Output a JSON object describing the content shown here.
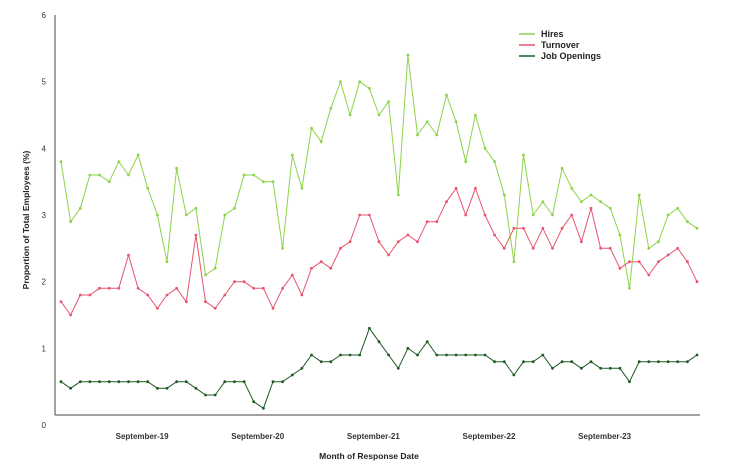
{
  "chart_data": {
    "type": "line",
    "xlabel": "Month of Response Date",
    "ylabel": "Proportion of Total Employees (%)",
    "ylim": [
      0,
      6
    ],
    "yticks": [
      0,
      1,
      2,
      3,
      4,
      5,
      6
    ],
    "x_tick_labels": [
      {
        "label": "September-19",
        "index": 8
      },
      {
        "label": "September-20",
        "index": 20
      },
      {
        "label": "September-21",
        "index": 32
      },
      {
        "label": "September-22",
        "index": 44
      },
      {
        "label": "September-23",
        "index": 56
      }
    ],
    "grid": false,
    "legend_position": "top-right",
    "series": [
      {
        "name": "Hires",
        "color": "#8ed34a",
        "values": [
          3.8,
          2.9,
          3.1,
          3.6,
          3.6,
          3.5,
          3.8,
          3.6,
          3.9,
          3.4,
          3.0,
          2.3,
          3.7,
          3.0,
          3.1,
          2.1,
          2.2,
          3.0,
          3.1,
          3.6,
          3.6,
          3.5,
          3.5,
          2.5,
          3.9,
          3.4,
          4.3,
          4.1,
          4.6,
          5.0,
          4.5,
          5.0,
          4.9,
          4.5,
          4.7,
          3.3,
          5.4,
          4.2,
          4.4,
          4.2,
          4.8,
          4.4,
          3.8,
          4.5,
          4.0,
          3.8,
          3.3,
          2.3,
          3.9,
          3.0,
          3.2,
          3.0,
          3.7,
          3.4,
          3.2,
          3.3,
          3.2,
          3.1,
          2.7,
          1.9,
          3.3,
          2.5,
          2.6,
          3.0,
          3.1,
          2.9,
          2.8
        ]
      },
      {
        "name": "Turnover",
        "color": "#e8546e",
        "values": [
          1.7,
          1.5,
          1.8,
          1.8,
          1.9,
          1.9,
          1.9,
          2.4,
          1.9,
          1.8,
          1.6,
          1.8,
          1.9,
          1.7,
          2.7,
          1.7,
          1.6,
          1.8,
          2.0,
          2.0,
          1.9,
          1.9,
          1.6,
          1.9,
          2.1,
          1.8,
          2.2,
          2.3,
          2.2,
          2.5,
          2.6,
          3.0,
          3.0,
          2.6,
          2.4,
          2.6,
          2.7,
          2.6,
          2.9,
          2.9,
          3.2,
          3.4,
          3.0,
          3.4,
          3.0,
          2.7,
          2.5,
          2.8,
          2.8,
          2.5,
          2.8,
          2.5,
          2.8,
          3.0,
          2.6,
          3.1,
          2.5,
          2.5,
          2.2,
          2.3,
          2.3,
          2.1,
          2.3,
          2.4,
          2.5,
          2.3,
          2.0
        ]
      },
      {
        "name": "Job Openings",
        "color": "#1e5a22",
        "values": [
          0.5,
          0.4,
          0.5,
          0.5,
          0.5,
          0.5,
          0.5,
          0.5,
          0.5,
          0.5,
          0.4,
          0.4,
          0.5,
          0.5,
          0.4,
          0.3,
          0.3,
          0.5,
          0.5,
          0.5,
          0.2,
          0.1,
          0.5,
          0.5,
          0.6,
          0.7,
          0.9,
          0.8,
          0.8,
          0.9,
          0.9,
          0.9,
          1.3,
          1.1,
          0.9,
          0.7,
          1.0,
          0.9,
          1.1,
          0.9,
          0.9,
          0.9,
          0.9,
          0.9,
          0.9,
          0.8,
          0.8,
          0.6,
          0.8,
          0.8,
          0.9,
          0.7,
          0.8,
          0.8,
          0.7,
          0.8,
          0.7,
          0.7,
          0.7,
          0.5,
          0.8,
          0.8,
          0.8,
          0.8,
          0.8,
          0.8,
          0.9
        ]
      }
    ]
  }
}
